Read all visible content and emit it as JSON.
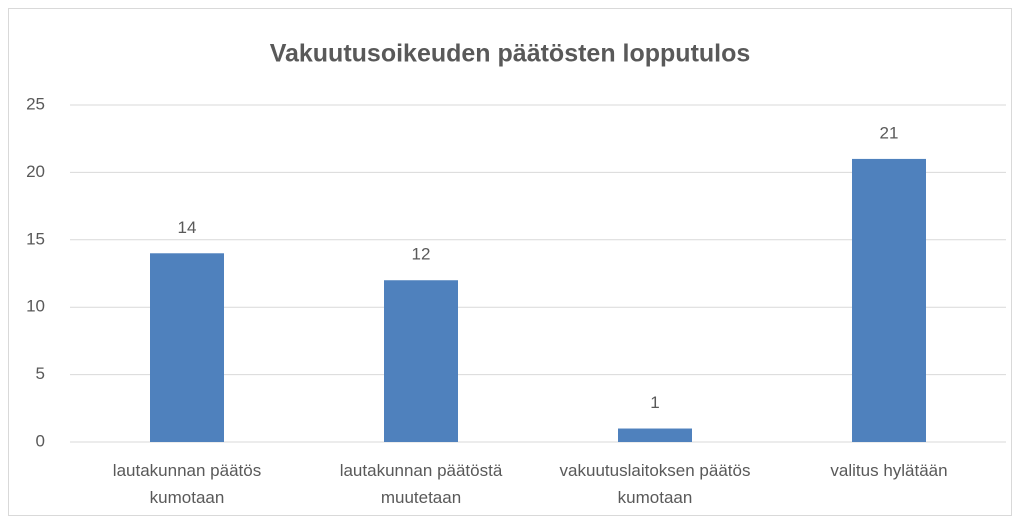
{
  "chart_data": {
    "type": "bar",
    "title": "Vakuutusoikeuden päätösten lopputulos",
    "categories": [
      "lautakunnan päätös kumotaan",
      "lautakunnan päätöstä muutetaan",
      "vakuutuslaitoksen päätös kumotaan",
      "valitus hylätään"
    ],
    "values": [
      14,
      12,
      1,
      21
    ],
    "color": "#4f81bd",
    "ylim": [
      0,
      25
    ],
    "yticks": [
      0,
      5,
      10,
      15,
      20,
      25
    ],
    "grid": true
  }
}
